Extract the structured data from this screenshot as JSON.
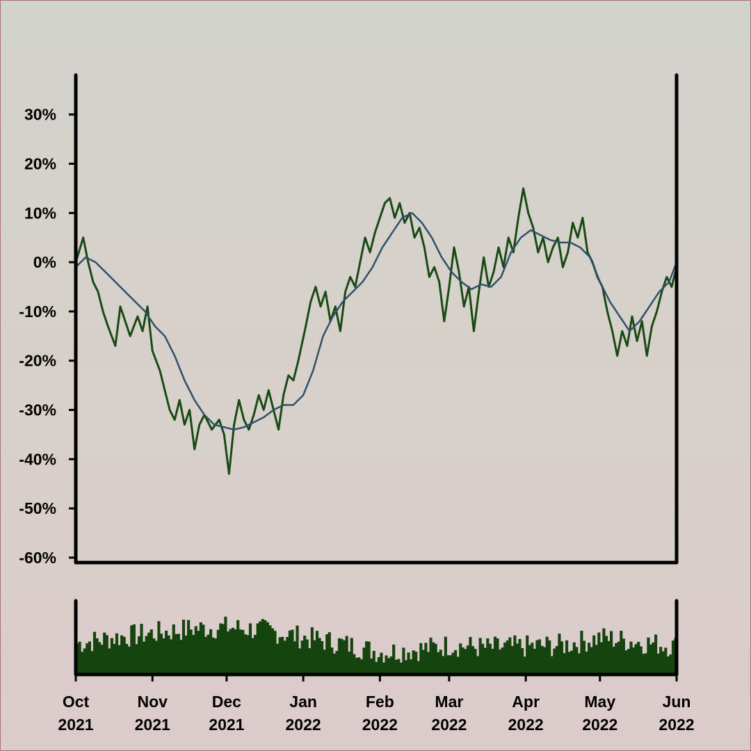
{
  "chart_data": {
    "type": "line",
    "title": "",
    "xlabel": "",
    "ylabel": "",
    "x_range": [
      "2021-10-01",
      "2022-06-01"
    ],
    "y_range": [
      -0.61,
      0.38
    ],
    "y_ticks": [
      {
        "value": 0.3,
        "label": "30%"
      },
      {
        "value": 0.2,
        "label": "20%"
      },
      {
        "value": 0.1,
        "label": "10%"
      },
      {
        "value": 0.0,
        "label": "0%"
      },
      {
        "value": -0.1,
        "label": "-10%"
      },
      {
        "value": -0.2,
        "label": "-20%"
      },
      {
        "value": -0.3,
        "label": "-30%"
      },
      {
        "value": -0.4,
        "label": "-40%"
      },
      {
        "value": -0.5,
        "label": "-50%"
      },
      {
        "value": -0.6,
        "label": "-60%"
      }
    ],
    "x_ticks": [
      {
        "date": "2021-10-01",
        "month": "Oct",
        "year": "2021"
      },
      {
        "date": "2021-11-01",
        "month": "Nov",
        "year": "2021"
      },
      {
        "date": "2021-12-01",
        "month": "Dec",
        "year": "2021"
      },
      {
        "date": "2022-01-01",
        "month": "Jan",
        "year": "2022"
      },
      {
        "date": "2022-02-01",
        "month": "Feb",
        "year": "2022"
      },
      {
        "date": "2022-03-01",
        "month": "Mar",
        "year": "2022"
      },
      {
        "date": "2022-04-01",
        "month": "Apr",
        "year": "2022"
      },
      {
        "date": "2022-05-01",
        "month": "May",
        "year": "2022"
      },
      {
        "date": "2022-06-01",
        "month": "Jun",
        "year": "2022"
      }
    ],
    "grid": false,
    "legend": "none",
    "series": [
      {
        "kind": "daily-return",
        "color": "#1a4a14",
        "points": [
          [
            "2021-10-01",
            0.0
          ],
          [
            "2021-10-04",
            0.05
          ],
          [
            "2021-10-06",
            0.0
          ],
          [
            "2021-10-08",
            -0.04
          ],
          [
            "2021-10-10",
            -0.06
          ],
          [
            "2021-10-12",
            -0.1
          ],
          [
            "2021-10-14",
            -0.13
          ],
          [
            "2021-10-17",
            -0.17
          ],
          [
            "2021-10-19",
            -0.09
          ],
          [
            "2021-10-21",
            -0.12
          ],
          [
            "2021-10-23",
            -0.15
          ],
          [
            "2021-10-26",
            -0.11
          ],
          [
            "2021-10-28",
            -0.14
          ],
          [
            "2021-10-30",
            -0.09
          ],
          [
            "2021-11-01",
            -0.18
          ],
          [
            "2021-11-04",
            -0.22
          ],
          [
            "2021-11-06",
            -0.26
          ],
          [
            "2021-11-08",
            -0.3
          ],
          [
            "2021-11-10",
            -0.32
          ],
          [
            "2021-11-12",
            -0.28
          ],
          [
            "2021-11-14",
            -0.33
          ],
          [
            "2021-11-16",
            -0.3
          ],
          [
            "2021-11-18",
            -0.38
          ],
          [
            "2021-11-20",
            -0.33
          ],
          [
            "2021-11-22",
            -0.31
          ],
          [
            "2021-11-25",
            -0.34
          ],
          [
            "2021-11-28",
            -0.32
          ],
          [
            "2021-11-30",
            -0.35
          ],
          [
            "2021-12-02",
            -0.43
          ],
          [
            "2021-12-04",
            -0.33
          ],
          [
            "2021-12-06",
            -0.28
          ],
          [
            "2021-12-08",
            -0.32
          ],
          [
            "2021-12-10",
            -0.34
          ],
          [
            "2021-12-12",
            -0.31
          ],
          [
            "2021-12-14",
            -0.27
          ],
          [
            "2021-12-16",
            -0.3
          ],
          [
            "2021-12-18",
            -0.26
          ],
          [
            "2021-12-20",
            -0.3
          ],
          [
            "2021-12-22",
            -0.34
          ],
          [
            "2021-12-24",
            -0.27
          ],
          [
            "2021-12-26",
            -0.23
          ],
          [
            "2021-12-28",
            -0.24
          ],
          [
            "2021-12-30",
            -0.2
          ],
          [
            "2022-01-02",
            -0.13
          ],
          [
            "2022-01-04",
            -0.08
          ],
          [
            "2022-01-06",
            -0.05
          ],
          [
            "2022-01-08",
            -0.09
          ],
          [
            "2022-01-10",
            -0.06
          ],
          [
            "2022-01-12",
            -0.12
          ],
          [
            "2022-01-14",
            -0.09
          ],
          [
            "2022-01-16",
            -0.14
          ],
          [
            "2022-01-18",
            -0.06
          ],
          [
            "2022-01-20",
            -0.03
          ],
          [
            "2022-01-22",
            -0.05
          ],
          [
            "2022-01-24",
            0.0
          ],
          [
            "2022-01-26",
            0.05
          ],
          [
            "2022-01-28",
            0.02
          ],
          [
            "2022-01-30",
            0.06
          ],
          [
            "2022-02-01",
            0.09
          ],
          [
            "2022-02-03",
            0.12
          ],
          [
            "2022-02-05",
            0.13
          ],
          [
            "2022-02-07",
            0.09
          ],
          [
            "2022-02-09",
            0.12
          ],
          [
            "2022-02-11",
            0.08
          ],
          [
            "2022-02-13",
            0.1
          ],
          [
            "2022-02-15",
            0.05
          ],
          [
            "2022-02-17",
            0.07
          ],
          [
            "2022-02-19",
            0.03
          ],
          [
            "2022-02-21",
            -0.03
          ],
          [
            "2022-02-23",
            -0.01
          ],
          [
            "2022-02-25",
            -0.04
          ],
          [
            "2022-02-27",
            -0.12
          ],
          [
            "2022-03-01",
            -0.05
          ],
          [
            "2022-03-03",
            0.03
          ],
          [
            "2022-03-05",
            -0.02
          ],
          [
            "2022-03-07",
            -0.09
          ],
          [
            "2022-03-09",
            -0.05
          ],
          [
            "2022-03-11",
            -0.14
          ],
          [
            "2022-03-13",
            -0.06
          ],
          [
            "2022-03-15",
            0.01
          ],
          [
            "2022-03-17",
            -0.05
          ],
          [
            "2022-03-19",
            -0.02
          ],
          [
            "2022-03-21",
            0.03
          ],
          [
            "2022-03-23",
            -0.01
          ],
          [
            "2022-03-25",
            0.05
          ],
          [
            "2022-03-27",
            0.02
          ],
          [
            "2022-03-29",
            0.09
          ],
          [
            "2022-03-31",
            0.15
          ],
          [
            "2022-04-02",
            0.1
          ],
          [
            "2022-04-04",
            0.07
          ],
          [
            "2022-04-06",
            0.02
          ],
          [
            "2022-04-08",
            0.05
          ],
          [
            "2022-04-10",
            0.0
          ],
          [
            "2022-04-12",
            0.03
          ],
          [
            "2022-04-14",
            0.05
          ],
          [
            "2022-04-16",
            -0.01
          ],
          [
            "2022-04-18",
            0.02
          ],
          [
            "2022-04-20",
            0.08
          ],
          [
            "2022-04-22",
            0.05
          ],
          [
            "2022-04-24",
            0.09
          ],
          [
            "2022-04-26",
            0.02
          ],
          [
            "2022-04-28",
            0.0
          ],
          [
            "2022-04-30",
            -0.03
          ],
          [
            "2022-05-02",
            -0.05
          ],
          [
            "2022-05-04",
            -0.1
          ],
          [
            "2022-05-06",
            -0.14
          ],
          [
            "2022-05-08",
            -0.19
          ],
          [
            "2022-05-10",
            -0.14
          ],
          [
            "2022-05-12",
            -0.17
          ],
          [
            "2022-05-14",
            -0.11
          ],
          [
            "2022-05-16",
            -0.16
          ],
          [
            "2022-05-18",
            -0.12
          ],
          [
            "2022-05-20",
            -0.19
          ],
          [
            "2022-05-22",
            -0.13
          ],
          [
            "2022-05-24",
            -0.1
          ],
          [
            "2022-05-26",
            -0.06
          ],
          [
            "2022-05-28",
            -0.03
          ],
          [
            "2022-05-30",
            -0.05
          ],
          [
            "2022-06-01",
            -0.01
          ]
        ]
      },
      {
        "kind": "moving-average",
        "color": "#2f5068",
        "points": [
          [
            "2021-10-01",
            -0.01
          ],
          [
            "2021-10-05",
            0.01
          ],
          [
            "2021-10-09",
            0.0
          ],
          [
            "2021-10-13",
            -0.02
          ],
          [
            "2021-10-17",
            -0.04
          ],
          [
            "2021-10-21",
            -0.06
          ],
          [
            "2021-10-25",
            -0.08
          ],
          [
            "2021-10-29",
            -0.1
          ],
          [
            "2021-11-02",
            -0.13
          ],
          [
            "2021-11-06",
            -0.15
          ],
          [
            "2021-11-10",
            -0.19
          ],
          [
            "2021-11-14",
            -0.24
          ],
          [
            "2021-11-18",
            -0.28
          ],
          [
            "2021-11-22",
            -0.31
          ],
          [
            "2021-11-26",
            -0.33
          ],
          [
            "2021-11-30",
            -0.335
          ],
          [
            "2021-12-04",
            -0.34
          ],
          [
            "2021-12-08",
            -0.335
          ],
          [
            "2021-12-12",
            -0.325
          ],
          [
            "2021-12-16",
            -0.315
          ],
          [
            "2021-12-20",
            -0.3
          ],
          [
            "2021-12-24",
            -0.29
          ],
          [
            "2021-12-28",
            -0.29
          ],
          [
            "2022-01-01",
            -0.27
          ],
          [
            "2022-01-05",
            -0.22
          ],
          [
            "2022-01-09",
            -0.15
          ],
          [
            "2022-01-13",
            -0.11
          ],
          [
            "2022-01-17",
            -0.08
          ],
          [
            "2022-01-21",
            -0.06
          ],
          [
            "2022-01-25",
            -0.04
          ],
          [
            "2022-01-29",
            -0.01
          ],
          [
            "2022-02-02",
            0.03
          ],
          [
            "2022-02-06",
            0.06
          ],
          [
            "2022-02-10",
            0.09
          ],
          [
            "2022-02-14",
            0.1
          ],
          [
            "2022-02-18",
            0.08
          ],
          [
            "2022-02-22",
            0.05
          ],
          [
            "2022-02-26",
            0.01
          ],
          [
            "2022-03-02",
            -0.02
          ],
          [
            "2022-03-06",
            -0.04
          ],
          [
            "2022-03-10",
            -0.055
          ],
          [
            "2022-03-14",
            -0.045
          ],
          [
            "2022-03-18",
            -0.05
          ],
          [
            "2022-03-22",
            -0.03
          ],
          [
            "2022-03-26",
            0.02
          ],
          [
            "2022-03-30",
            0.05
          ],
          [
            "2022-04-03",
            0.065
          ],
          [
            "2022-04-07",
            0.055
          ],
          [
            "2022-04-11",
            0.045
          ],
          [
            "2022-04-15",
            0.04
          ],
          [
            "2022-04-19",
            0.04
          ],
          [
            "2022-04-23",
            0.03
          ],
          [
            "2022-04-27",
            0.01
          ],
          [
            "2022-05-01",
            -0.04
          ],
          [
            "2022-05-05",
            -0.08
          ],
          [
            "2022-05-09",
            -0.11
          ],
          [
            "2022-05-13",
            -0.14
          ],
          [
            "2022-05-17",
            -0.12
          ],
          [
            "2022-05-21",
            -0.09
          ],
          [
            "2022-05-25",
            -0.06
          ],
          [
            "2022-05-29",
            -0.04
          ],
          [
            "2022-06-01",
            0.0
          ]
        ]
      }
    ],
    "volume_bars": {
      "kind": "volume",
      "color": "#15440f",
      "relative_levels": [
        {
          "date": "2021-10-01",
          "level": 0.42
        },
        {
          "date": "2021-10-16",
          "level": 0.5
        },
        {
          "date": "2021-11-01",
          "level": 0.56
        },
        {
          "date": "2021-11-16",
          "level": 0.62
        },
        {
          "date": "2021-12-01",
          "level": 0.64
        },
        {
          "date": "2021-12-16",
          "level": 0.6
        },
        {
          "date": "2022-01-01",
          "level": 0.5
        },
        {
          "date": "2022-01-16",
          "level": 0.42
        },
        {
          "date": "2022-02-01",
          "level": 0.3
        },
        {
          "date": "2022-02-16",
          "level": 0.34
        },
        {
          "date": "2022-03-01",
          "level": 0.4
        },
        {
          "date": "2022-03-16",
          "level": 0.36
        },
        {
          "date": "2022-04-01",
          "level": 0.38
        },
        {
          "date": "2022-04-16",
          "level": 0.4
        },
        {
          "date": "2022-05-01",
          "level": 0.5
        },
        {
          "date": "2022-05-16",
          "level": 0.44
        },
        {
          "date": "2022-06-01",
          "level": 0.38
        }
      ]
    }
  }
}
